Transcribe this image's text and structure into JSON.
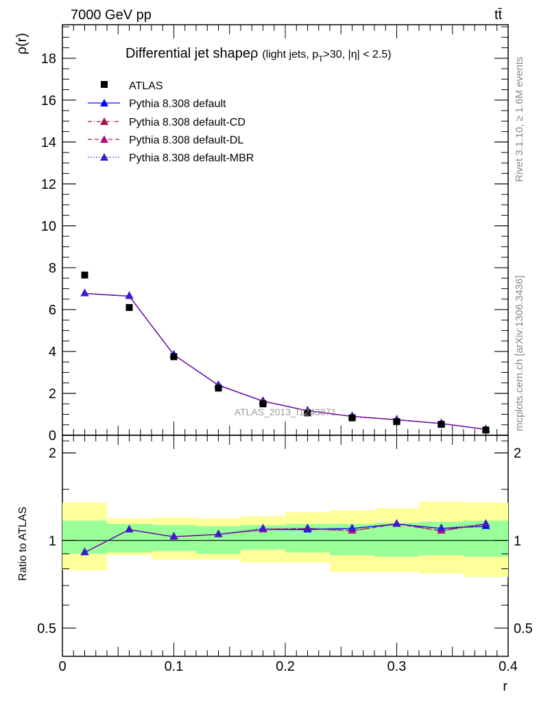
{
  "header": {
    "energy": "7000 GeV pp",
    "process": "tt̄"
  },
  "title": {
    "main": "Differential jet shapeρ",
    "sub": "(light jets, p",
    "sub_sub": "T",
    "sub_rest": ">30, |η| < 2.5)"
  },
  "watermark": "ATLAS_2013_I1243871",
  "side_labels": {
    "rivet": "Rivet 3.1.10, ≥ 1.6M events",
    "mcplots": "mcplots.cern.ch [arXiv:1306.3436]"
  },
  "colors": {
    "atlas": "#000000",
    "default": "#0000ff",
    "cd": "#a01840",
    "dl": "#b0107a",
    "mbr": "#3c1ad2",
    "band_green": "#99ff99",
    "band_yellow": "#ffff99"
  },
  "chart_data": [
    {
      "type": "line",
      "xlabel": "r",
      "ylabel": "ρ(r)",
      "xlim": [
        0,
        0.4
      ],
      "ylim": [
        0,
        19.6
      ],
      "yticks": [
        0,
        2,
        4,
        6,
        8,
        10,
        12,
        14,
        16,
        18
      ],
      "x": [
        0.02,
        0.06,
        0.1,
        0.14,
        0.18,
        0.22,
        0.26,
        0.3,
        0.34,
        0.38
      ],
      "legend": "top-left",
      "series": [
        {
          "name": "ATLAS",
          "marker": "square",
          "values": [
            7.65,
            6.1,
            3.75,
            2.25,
            1.5,
            1.07,
            0.83,
            0.65,
            0.52,
            0.25
          ]
        },
        {
          "name": "Pythia 8.308 default",
          "marker": "triangle",
          "style": "solid",
          "values": [
            6.77,
            6.64,
            3.84,
            2.39,
            1.63,
            1.17,
            0.9,
            0.74,
            0.56,
            0.28
          ]
        },
        {
          "name": "Pythia 8.308 default-CD",
          "marker": "triangle",
          "style": "dashdot",
          "values": [
            6.77,
            6.64,
            3.84,
            2.39,
            1.63,
            1.17,
            0.9,
            0.74,
            0.56,
            0.28
          ]
        },
        {
          "name": "Pythia 8.308 default-DL",
          "marker": "triangle",
          "style": "dash",
          "values": [
            6.77,
            6.64,
            3.84,
            2.39,
            1.63,
            1.17,
            0.9,
            0.74,
            0.56,
            0.28
          ]
        },
        {
          "name": "Pythia 8.308 default-MBR",
          "marker": "triangle",
          "style": "dot",
          "values": [
            6.77,
            6.64,
            3.84,
            2.39,
            1.63,
            1.17,
            0.9,
            0.74,
            0.56,
            0.28
          ]
        }
      ]
    },
    {
      "type": "line",
      "xlabel": "r",
      "ylabel": "Ratio to ATLAS",
      "xlim": [
        0,
        0.4
      ],
      "ylim": [
        0.4,
        2.3
      ],
      "yscale": "log",
      "yticks": [
        0.5,
        1,
        2
      ],
      "xticks": [
        0,
        0.1,
        0.2,
        0.3,
        0.4
      ],
      "x": [
        0.02,
        0.06,
        0.1,
        0.14,
        0.18,
        0.22,
        0.26,
        0.3,
        0.34,
        0.38
      ],
      "bands": {
        "edges": [
          0.0,
          0.04,
          0.08,
          0.12,
          0.16,
          0.2,
          0.24,
          0.28,
          0.32,
          0.36,
          0.4
        ],
        "green_hi": [
          1.17,
          1.14,
          1.13,
          1.12,
          1.13,
          1.14,
          1.14,
          1.15,
          1.16,
          1.17
        ],
        "green_lo": [
          0.9,
          0.91,
          0.92,
          0.9,
          0.93,
          0.91,
          0.89,
          0.88,
          0.89,
          0.88
        ],
        "yellow_hi": [
          1.35,
          1.19,
          1.2,
          1.19,
          1.21,
          1.25,
          1.27,
          1.29,
          1.36,
          1.35
        ],
        "yellow_lo": [
          0.79,
          0.89,
          0.86,
          0.86,
          0.84,
          0.84,
          0.78,
          0.78,
          0.77,
          0.75
        ]
      },
      "series": [
        {
          "name": "Pythia 8.308 default",
          "values": [
            0.91,
            1.09,
            1.03,
            1.05,
            1.09,
            1.09,
            1.1,
            1.14,
            1.1,
            1.12
          ]
        },
        {
          "name": "Pythia 8.308 default-CD",
          "values": [
            0.91,
            1.09,
            1.03,
            1.05,
            1.09,
            1.1,
            1.08,
            1.14,
            1.08,
            1.14
          ]
        },
        {
          "name": "Pythia 8.308 default-DL",
          "values": [
            0.91,
            1.09,
            1.03,
            1.05,
            1.09,
            1.1,
            1.08,
            1.14,
            1.08,
            1.14
          ]
        },
        {
          "name": "Pythia 8.308 default-MBR",
          "values": [
            0.91,
            1.09,
            1.03,
            1.05,
            1.1,
            1.1,
            1.1,
            1.14,
            1.1,
            1.14
          ]
        }
      ]
    }
  ]
}
